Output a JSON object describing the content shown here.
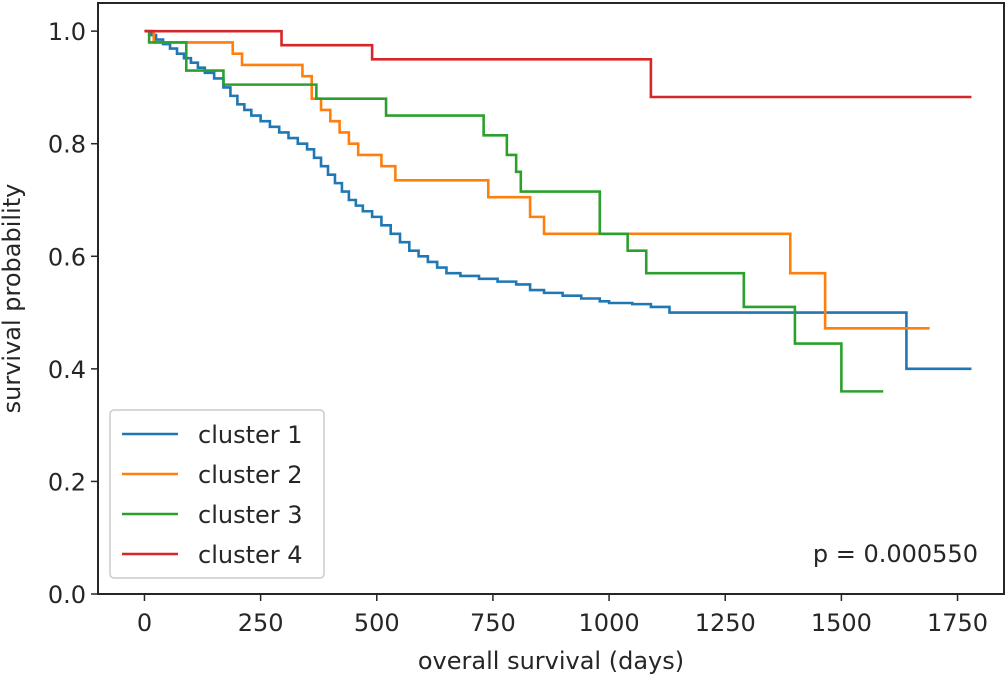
{
  "chart_data": {
    "type": "line",
    "subtype": "kaplan-meier step",
    "title": "",
    "xlabel": "overall survival (days)",
    "ylabel": "survival probability",
    "xlim": [
      -100,
      1850
    ],
    "ylim": [
      0.0,
      1.05
    ],
    "xticks": [
      0,
      250,
      500,
      750,
      1000,
      1250,
      1500,
      1750
    ],
    "yticks": [
      0.0,
      0.2,
      0.4,
      0.6,
      0.8,
      1.0
    ],
    "xtick_labels": [
      "0",
      "250",
      "500",
      "750",
      "1000",
      "1250",
      "1500",
      "1750"
    ],
    "ytick_labels": [
      "0.0",
      "0.2",
      "0.4",
      "0.6",
      "0.8",
      "1.0"
    ],
    "grid": false,
    "legend_position": "lower-left",
    "annotation": "p = 0.000550",
    "series": [
      {
        "name": "cluster 1",
        "color": "#1f77b4",
        "x": [
          0,
          15,
          25,
          40,
          55,
          70,
          85,
          100,
          115,
          130,
          150,
          170,
          185,
          200,
          215,
          230,
          250,
          270,
          290,
          310,
          330,
          350,
          365,
          380,
          395,
          410,
          425,
          440,
          455,
          470,
          490,
          510,
          530,
          550,
          570,
          590,
          610,
          630,
          650,
          680,
          720,
          760,
          800,
          830,
          860,
          900,
          940,
          980,
          1000,
          1050,
          1090,
          1130,
          1640,
          1780
        ],
        "y": [
          1.0,
          0.993,
          0.985,
          0.977,
          0.969,
          0.96,
          0.952,
          0.944,
          0.935,
          0.926,
          0.916,
          0.9,
          0.885,
          0.87,
          0.86,
          0.85,
          0.84,
          0.83,
          0.82,
          0.81,
          0.8,
          0.79,
          0.775,
          0.76,
          0.745,
          0.73,
          0.715,
          0.7,
          0.69,
          0.68,
          0.67,
          0.655,
          0.64,
          0.625,
          0.61,
          0.6,
          0.59,
          0.58,
          0.57,
          0.565,
          0.56,
          0.555,
          0.55,
          0.54,
          0.535,
          0.53,
          0.525,
          0.52,
          0.517,
          0.515,
          0.51,
          0.5,
          0.4,
          0.4
        ]
      },
      {
        "name": "cluster 2",
        "color": "#ff7f0e",
        "x": [
          0,
          20,
          190,
          210,
          340,
          360,
          380,
          400,
          420,
          440,
          460,
          510,
          540,
          740,
          830,
          860,
          1390,
          1465,
          1690
        ],
        "y": [
          1.0,
          0.98,
          0.96,
          0.94,
          0.92,
          0.88,
          0.86,
          0.84,
          0.82,
          0.8,
          0.78,
          0.76,
          0.735,
          0.705,
          0.67,
          0.64,
          0.57,
          0.472,
          0.472
        ]
      },
      {
        "name": "cluster 3",
        "color": "#2ca02c",
        "x": [
          0,
          10,
          90,
          170,
          370,
          520,
          730,
          780,
          800,
          810,
          980,
          1040,
          1080,
          1290,
          1400,
          1500,
          1590
        ],
        "y": [
          1.0,
          0.98,
          0.93,
          0.905,
          0.88,
          0.85,
          0.815,
          0.78,
          0.75,
          0.715,
          0.64,
          0.61,
          0.57,
          0.51,
          0.445,
          0.36,
          0.36
        ]
      },
      {
        "name": "cluster 4",
        "color": "#d62728",
        "x": [
          0,
          295,
          490,
          1090,
          1780
        ],
        "y": [
          1.0,
          0.975,
          0.95,
          0.883,
          0.883
        ]
      }
    ]
  }
}
